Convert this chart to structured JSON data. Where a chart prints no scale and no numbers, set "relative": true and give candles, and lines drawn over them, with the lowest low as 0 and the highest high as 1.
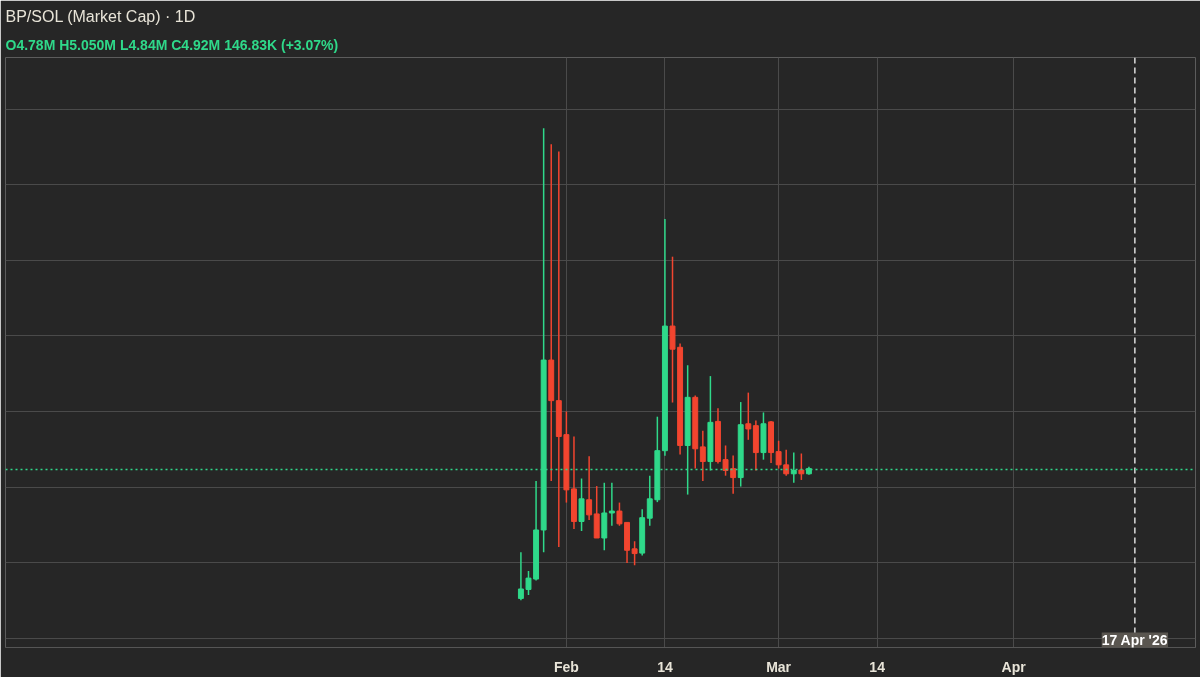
{
  "chart_data": {
    "type": "candlestick",
    "title": "BP/SOL (Market Cap) · 1D",
    "annotations": [
      "O4.78M H5.050M L4.84M C4.92M 146.83K (+3.07%)"
    ],
    "relative": true,
    "grid": true,
    "x": [
      "2026-01-26",
      "2026-01-27",
      "2026-01-28",
      "2026-01-29",
      "2026-01-30",
      "2026-01-31",
      "2026-02-01",
      "2026-02-02",
      "2026-02-03",
      "2026-02-04",
      "2026-02-05",
      "2026-02-06",
      "2026-02-07",
      "2026-02-08",
      "2026-02-09",
      "2026-02-10",
      "2026-02-11",
      "2026-02-12",
      "2026-02-13",
      "2026-02-14",
      "2026-02-15",
      "2026-02-16",
      "2026-02-17",
      "2026-02-18",
      "2026-02-19",
      "2026-02-20",
      "2026-02-21",
      "2026-02-22",
      "2026-02-23",
      "2026-02-24",
      "2026-02-25",
      "2026-02-26",
      "2026-02-27",
      "2026-02-28",
      "2026-03-01",
      "2026-03-02",
      "2026-03-03",
      "2026-03-04",
      "2026-03-05"
    ],
    "ohlc": [
      [
        0.004,
        0.102,
        0,
        0.024
      ],
      [
        0.023,
        0.062,
        0.011,
        0.047
      ],
      [
        0.045,
        0.253,
        0.042,
        0.149
      ],
      [
        0.149,
        1,
        0.102,
        0.509
      ],
      [
        0.509,
        0.966,
        0.253,
        0.423
      ],
      [
        0.423,
        0.951,
        0.113,
        0.347
      ],
      [
        0.351,
        0.4,
        0.207,
        0.234
      ],
      [
        0.236,
        0.347,
        0.151,
        0.167
      ],
      [
        0.167,
        0.258,
        0.147,
        0.215
      ],
      [
        0.213,
        0.305,
        0.17,
        0.181
      ],
      [
        0.183,
        0.242,
        0.132,
        0.132
      ],
      [
        0.132,
        0.249,
        0.106,
        0.185
      ],
      [
        0.185,
        0.249,
        0.158,
        0.189
      ],
      [
        0.189,
        0.207,
        0.158,
        0.162
      ],
      [
        0.165,
        0.165,
        0.079,
        0.106
      ],
      [
        0.109,
        0.125,
        0.074,
        0.099
      ],
      [
        0.1,
        0.193,
        0.095,
        0.175
      ],
      [
        0.174,
        0.264,
        0.158,
        0.215
      ],
      [
        0.213,
        0.389,
        0.208,
        0.317
      ],
      [
        0.317,
        0.808,
        0.306,
        0.581
      ],
      [
        0.581,
        0.728,
        0.419,
        0.532
      ],
      [
        0.536,
        0.544,
        0.309,
        0.328
      ],
      [
        0.328,
        0.498,
        0.224,
        0.43
      ],
      [
        0.43,
        0.434,
        0.279,
        0.321
      ],
      [
        0.325,
        0.359,
        0.253,
        0.294
      ],
      [
        0.294,
        0.475,
        0.275,
        0.377
      ],
      [
        0.379,
        0.407,
        0.29,
        0.294
      ],
      [
        0.298,
        0.328,
        0.264,
        0.275
      ],
      [
        0.279,
        0.307,
        0.226,
        0.26
      ],
      [
        0.26,
        0.42,
        0.241,
        0.372
      ],
      [
        0.374,
        0.44,
        0.34,
        0.363
      ],
      [
        0.37,
        0.381,
        0.275,
        0.313
      ],
      [
        0.313,
        0.398,
        0.298,
        0.374
      ],
      [
        0.378,
        0.38,
        0.291,
        0.313
      ],
      [
        0.315,
        0.338,
        0.279,
        0.287
      ],
      [
        0.287,
        0.319,
        0.264,
        0.268
      ],
      [
        0.268,
        0.313,
        0.249,
        0.275
      ],
      [
        0.276,
        0.311,
        0.255,
        0.268
      ],
      [
        0.268,
        0.283,
        0.266,
        0.279
      ]
    ],
    "colors": [
      "#2fd98a",
      "#2fd98a",
      "#2fd98a",
      "#2fd98a",
      "#f2452f",
      "#f2452f",
      "#f2452f",
      "#f2452f",
      "#2fd98a",
      "#f2452f",
      "#f2452f",
      "#2fd98a",
      "#2fd98a",
      "#f2452f",
      "#f2452f",
      "#f2452f",
      "#2fd98a",
      "#2fd98a",
      "#2fd98a",
      "#2fd98a",
      "#f2452f",
      "#f2452f",
      "#2fd98a",
      "#f2452f",
      "#f2452f",
      "#2fd98a",
      "#f2452f",
      "#f2452f",
      "#f2452f",
      "#2fd98a",
      "#f2452f",
      "#f2452f",
      "#2fd98a",
      "#f2452f",
      "#f2452f",
      "#f2452f",
      "#2fd98a",
      "#f2452f",
      "#2fd98a"
    ],
    "xlim": [
      "2025-11-19",
      "2026-04-25"
    ],
    "xticks": [
      {
        "value": "2026-02-01",
        "label": "Feb"
      },
      {
        "value": "2026-02-14",
        "label": "14"
      },
      {
        "value": "2026-03-01",
        "label": "Mar"
      },
      {
        "value": "2026-03-14",
        "label": "14"
      },
      {
        "value": "2026-04-01",
        "label": "Apr"
      }
    ],
    "ref_lines": [
      {
        "axis": "x",
        "value": "2026-04-17",
        "label": "17 Apr '26",
        "color": "#dddddd",
        "line_style": "dashed"
      },
      {
        "axis": "y",
        "value": 0.277,
        "color": "#2fd98a",
        "line_style": "dotted"
      }
    ]
  }
}
